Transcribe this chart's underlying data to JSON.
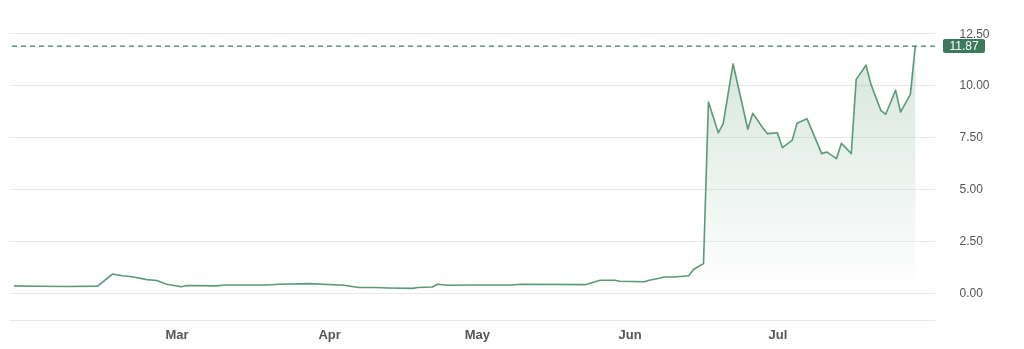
{
  "chart_data": {
    "type": "area",
    "series": [
      {
        "color": "#5a9a78",
        "x": [
          "--01-27",
          "--02-01",
          "--02-07",
          "--02-13",
          "--02-16",
          "--02-18",
          "--02-20",
          "--02-23",
          "--02-25",
          "--02-27",
          "--03-02",
          "--03-03",
          "--03-09",
          "--03-11",
          "--03-19",
          "--03-22",
          "--03-28",
          "--04-04",
          "--04-07",
          "--04-10",
          "--04-13",
          "--04-18",
          "--04-19",
          "--04-22",
          "--04-23",
          "--04-25",
          "--05-01",
          "--05-08",
          "--05-10",
          "--05-23",
          "--05-26",
          "--05-29",
          "--05-30",
          "--06-04",
          "--06-05",
          "--06-07",
          "--06-08",
          "--06-10",
          "--06-13",
          "--06-14",
          "--06-16",
          "--06-17",
          "--06-19",
          "--06-20",
          "--06-22",
          "--06-25",
          "--06-26",
          "--06-28",
          "--06-29",
          "--07-01",
          "--07-02",
          "--07-04",
          "--07-05",
          "--07-07",
          "--07-10",
          "--07-11",
          "--07-13",
          "--07-14",
          "--07-16",
          "--07-17",
          "--07-19",
          "--07-20",
          "--07-22",
          "--07-23",
          "--07-25",
          "--07-26",
          "--07-28",
          "--07-29"
        ],
        "values": [
          0.34,
          0.32,
          0.31,
          0.33,
          0.91,
          0.83,
          0.78,
          0.64,
          0.6,
          0.42,
          0.3,
          0.36,
          0.34,
          0.38,
          0.38,
          0.42,
          0.45,
          0.37,
          0.26,
          0.26,
          0.24,
          0.22,
          0.26,
          0.29,
          0.42,
          0.37,
          0.38,
          0.38,
          0.42,
          0.4,
          0.61,
          0.61,
          0.56,
          0.54,
          0.61,
          0.71,
          0.77,
          0.77,
          0.83,
          1.14,
          1.41,
          9.18,
          7.7,
          8.14,
          11.02,
          7.87,
          8.64,
          7.95,
          7.66,
          7.7,
          6.99,
          7.34,
          8.16,
          8.38,
          6.7,
          6.78,
          6.46,
          7.2,
          6.7,
          10.27,
          10.95,
          10.03,
          8.78,
          8.59,
          9.75,
          8.7,
          9.55,
          11.87
        ]
      }
    ],
    "legend": false,
    "xlim": [
      "--01-26",
      "--08-02"
    ],
    "xticks": [
      {
        "value": "--03-01",
        "label": "Mar"
      },
      {
        "value": "--04-01",
        "label": "Apr"
      },
      {
        "value": "--05-01",
        "label": "May"
      },
      {
        "value": "--06-01",
        "label": "Jun"
      },
      {
        "value": "--07-01",
        "label": "Jul"
      }
    ],
    "ylim": [
      -1.3,
      12.5
    ],
    "yticks": [
      {
        "value": 0,
        "label": "0.00"
      },
      {
        "value": 2.5,
        "label": "2.50"
      },
      {
        "value": 5,
        "label": "5.00"
      },
      {
        "value": 7.5,
        "label": "7.50"
      },
      {
        "value": 10,
        "label": "10.00"
      },
      {
        "value": 12.5,
        "label": "12.50"
      }
    ],
    "ref_lines": [
      {
        "axis": "y",
        "value": 11.87,
        "label": "11.87",
        "color": "#3d7a5c",
        "line_style": "dashed"
      }
    ],
    "grid": "y"
  }
}
